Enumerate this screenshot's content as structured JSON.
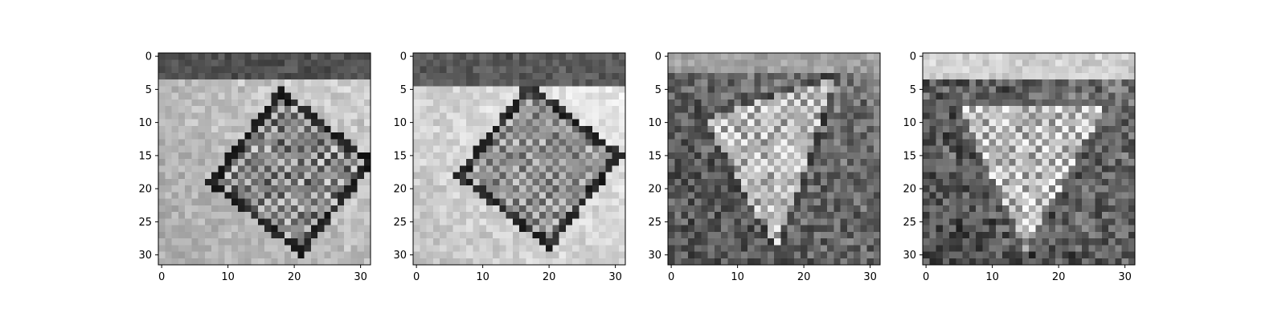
{
  "chart_data": {
    "type": "heatmap",
    "colormap": "gray",
    "grid": false,
    "panels": [
      {
        "panel": 1,
        "shape": [
          32,
          32
        ],
        "xlim": [
          -0.5,
          31.5
        ],
        "ylim": [
          31.5,
          -0.5
        ],
        "x_ticks": [
          0,
          10,
          20,
          30
        ],
        "y_ticks": [
          0,
          5,
          10,
          15,
          20,
          25,
          30
        ],
        "motif": "tilted square outline on light background",
        "square_center": [
          19.5,
          17.5
        ],
        "square_half_size": 8.5,
        "rotation_deg": 38,
        "background": [
          170,
          210
        ],
        "top_band": [
          60,
          100
        ],
        "top_band_rows": 4,
        "edge": [
          15,
          50
        ],
        "interior": [
          60,
          220
        ],
        "noise": 20
      },
      {
        "panel": 2,
        "shape": [
          32,
          32
        ],
        "xlim": [
          -0.5,
          31.5
        ],
        "ylim": [
          31.5,
          -0.5
        ],
        "x_ticks": [
          0,
          10,
          20,
          30
        ],
        "y_ticks": [
          0,
          5,
          10,
          15,
          20,
          25,
          30
        ],
        "motif": "tilted square outline on light background",
        "square_center": [
          18.5,
          16.5
        ],
        "square_half_size": 8.5,
        "rotation_deg": 38,
        "background": [
          195,
          235
        ],
        "top_band": [
          70,
          110
        ],
        "top_band_rows": 5,
        "edge": [
          20,
          60
        ],
        "interior": [
          90,
          210
        ],
        "noise": 15
      },
      {
        "panel": 3,
        "shape": [
          32,
          32
        ],
        "xlim": [
          -0.5,
          31.5
        ],
        "ylim": [
          31.5,
          -0.5
        ],
        "x_ticks": [
          0,
          10,
          20,
          30
        ],
        "y_ticks": [
          0,
          5,
          10,
          15,
          20,
          25,
          30
        ],
        "motif": "light inverted triangle on dark background",
        "triangle": [
          [
            4,
            9
          ],
          [
            26,
            2
          ],
          [
            16,
            31
          ]
        ],
        "background": [
          70,
          150
        ],
        "top_band": [
          140,
          180
        ],
        "top_band_rows": 3,
        "edge": [
          40,
          80
        ],
        "interior": [
          120,
          245
        ],
        "noise": 30
      },
      {
        "panel": 4,
        "shape": [
          32,
          32
        ],
        "xlim": [
          -0.5,
          31.5
        ],
        "ylim": [
          31.5,
          -0.5
        ],
        "x_ticks": [
          0,
          10,
          20,
          30
        ],
        "y_ticks": [
          0,
          5,
          10,
          15,
          20,
          25,
          30
        ],
        "motif": "light inverted triangle on dark noisy background",
        "triangle": [
          [
            4,
            7
          ],
          [
            28,
            7
          ],
          [
            15,
            31
          ]
        ],
        "background": [
          60,
          150
        ],
        "top_band": [
          190,
          225
        ],
        "top_band_rows": 4,
        "edge": [
          80,
          120
        ],
        "interior": [
          120,
          250
        ],
        "noise": 35
      }
    ]
  }
}
